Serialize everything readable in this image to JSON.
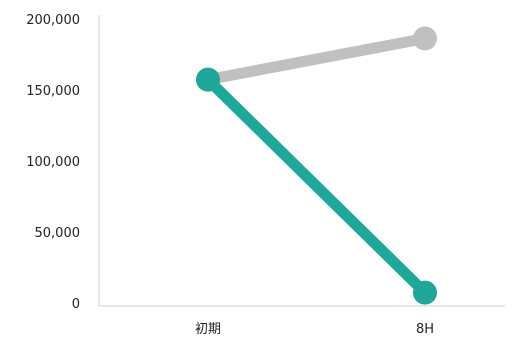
{
  "chart_data": {
    "type": "line",
    "categories": [
      "初期",
      "8H"
    ],
    "series": [
      {
        "values": [
          158000,
          187000
        ],
        "color": "#c0c0c0"
      },
      {
        "values": [
          158000,
          8000
        ],
        "color": "#1fa89a"
      }
    ],
    "y_ticks": [
      {
        "value": 0,
        "label": "0"
      },
      {
        "value": 50000,
        "label": "50,000"
      },
      {
        "value": 100000,
        "label": "100,000"
      },
      {
        "value": 150000,
        "label": "150,000"
      },
      {
        "value": 200000,
        "label": "200,000"
      }
    ],
    "ylim": [
      0,
      200000
    ],
    "grid": false,
    "axis_color": "#d0d0d0"
  }
}
